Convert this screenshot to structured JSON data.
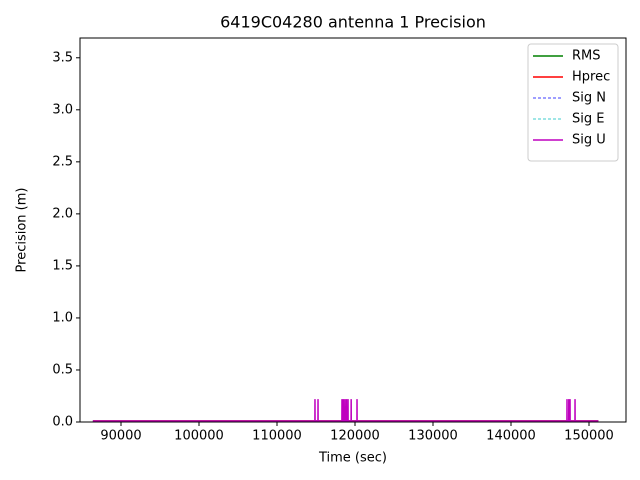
{
  "chart_data": {
    "type": "line",
    "title": "6419C04280 antenna 1 Precision",
    "xlabel": "Time (sec)",
    "ylabel": "Precision (m)",
    "x": [
      86400,
      114860,
      114870,
      114880,
      115250,
      115260,
      115270,
      118320,
      118330,
      118340,
      118500,
      118510,
      118520,
      118700,
      118710,
      118720,
      118900,
      118910,
      118920,
      119100,
      119110,
      119120,
      119500,
      119510,
      119520,
      120250,
      120260,
      120270,
      147170,
      147180,
      147190,
      147400,
      147410,
      147420,
      147560,
      147570,
      147580,
      148200,
      148210,
      148220,
      151200
    ],
    "series": [
      {
        "name": "RMS",
        "color": "#008000",
        "linestyle": "solid",
        "values": [
          0.01,
          0.01,
          0.01,
          0.01,
          0.01,
          0.01,
          0.01,
          0.01,
          0.01,
          0.01,
          0.01,
          0.01,
          0.01,
          0.01,
          0.01,
          0.01,
          0.01,
          0.01,
          0.01,
          0.01,
          0.01,
          0.01,
          0.01,
          0.01,
          0.01,
          0.01,
          0.01,
          0.01,
          0.01,
          0.01,
          0.01,
          0.01,
          0.01,
          0.01,
          0.01,
          0.01,
          0.01,
          0.01,
          0.01,
          0.01,
          0.01
        ]
      },
      {
        "name": "Hprec",
        "color": "#ff0000",
        "linestyle": "solid",
        "values": [
          0.01,
          0.01,
          0.01,
          0.01,
          0.01,
          0.01,
          0.01,
          0.01,
          0.01,
          0.01,
          0.01,
          0.01,
          0.01,
          0.01,
          0.01,
          0.01,
          0.01,
          0.01,
          0.01,
          0.01,
          0.01,
          0.01,
          0.01,
          0.01,
          0.01,
          0.01,
          0.01,
          0.01,
          0.01,
          0.01,
          0.01,
          0.01,
          0.01,
          0.01,
          0.01,
          0.01,
          0.01,
          0.01,
          0.01,
          0.01,
          0.01
        ]
      },
      {
        "name": "Sig N",
        "color": "#0000ff",
        "linestyle": "dashed",
        "values": [
          0.01,
          0.01,
          0.01,
          0.01,
          0.01,
          0.01,
          0.01,
          0.01,
          0.01,
          0.01,
          0.01,
          0.01,
          0.01,
          0.01,
          0.01,
          0.01,
          0.01,
          0.01,
          0.01,
          0.01,
          0.01,
          0.01,
          0.01,
          0.01,
          0.01,
          0.01,
          0.01,
          0.01,
          0.01,
          0.01,
          0.01,
          0.01,
          0.01,
          0.01,
          0.01,
          0.01,
          0.01,
          0.01,
          0.01,
          0.01,
          0.01
        ]
      },
      {
        "name": "Sig E",
        "color": "#00bfbf",
        "linestyle": "dashed",
        "values": [
          0.01,
          0.01,
          0.01,
          0.01,
          0.01,
          0.01,
          0.01,
          0.01,
          0.01,
          0.01,
          0.01,
          0.01,
          0.01,
          0.01,
          0.01,
          0.01,
          0.01,
          0.01,
          0.01,
          0.01,
          0.01,
          0.01,
          0.01,
          0.01,
          0.01,
          0.01,
          0.01,
          0.01,
          0.01,
          0.01,
          0.01,
          0.01,
          0.01,
          0.01,
          0.01,
          0.01,
          0.01,
          0.01,
          0.01,
          0.01,
          0.01
        ]
      },
      {
        "name": "Sig U",
        "color": "#bf00bf",
        "linestyle": "solid",
        "values": [
          0.01,
          0.01,
          0.22,
          0.01,
          0.01,
          0.22,
          0.01,
          0.01,
          0.22,
          0.01,
          0.01,
          0.22,
          0.01,
          0.01,
          0.22,
          0.01,
          0.01,
          0.22,
          0.01,
          0.01,
          0.22,
          0.01,
          0.01,
          0.22,
          0.01,
          0.01,
          0.22,
          0.01,
          0.01,
          0.22,
          0.01,
          0.01,
          0.22,
          0.01,
          0.01,
          0.22,
          0.01,
          0.01,
          0.22,
          0.01,
          0.01
        ]
      }
    ],
    "xlim": [
      84744,
      154744
    ],
    "xticks": [
      90000,
      100000,
      110000,
      120000,
      130000,
      140000,
      150000
    ],
    "ylim": [
      0,
      3.69
    ],
    "yticks": [
      {
        "value": 0,
        "label": "0.0"
      },
      0.5,
      {
        "value": 1,
        "label": "1.0"
      },
      1.5,
      {
        "value": 2,
        "label": "2.0"
      },
      2.5,
      {
        "value": 3,
        "label": "3.0"
      },
      3.5
    ],
    "grid": false,
    "legend": "upper right"
  }
}
